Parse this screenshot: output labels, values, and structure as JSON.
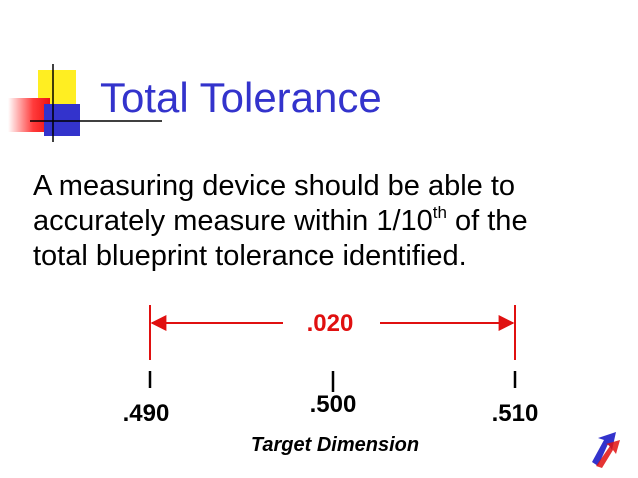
{
  "header": {
    "title": "Total Tolerance"
  },
  "body": {
    "line1": "A measuring device should be able to",
    "line2": {
      "before": "accurately measure within 1/10",
      "sup": "th",
      "after": " of the"
    },
    "line3": "total blueprint tolerance identified."
  },
  "diagram": {
    "tolerance": ".020",
    "low": ".490",
    "target": ".500",
    "high": ".510",
    "caption": "Target Dimension"
  }
}
